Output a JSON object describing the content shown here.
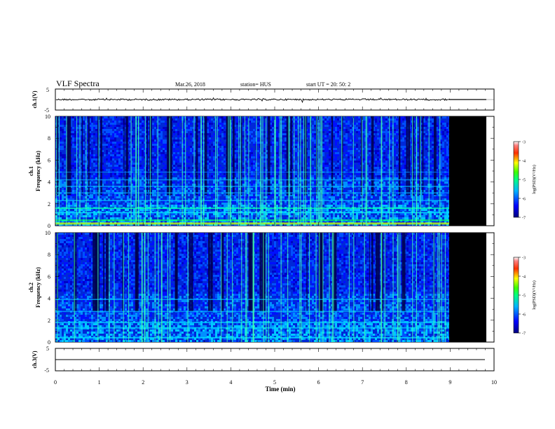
{
  "header": {
    "title": "VLF Spectra",
    "date": "Mar.26, 2018",
    "station": "station= HUS",
    "start_time": "start  UT  =   20: 50: 2"
  },
  "chart_data": [
    {
      "type": "line",
      "name": "ch1-waveform",
      "ylabel": "ch.1(V)",
      "yticks": [
        "5",
        "0",
        "-5"
      ],
      "ylim": [
        -5,
        5
      ],
      "xlim": [
        0,
        10
      ],
      "note": "noisy signal near 0 V until ~9 min, flat after"
    },
    {
      "type": "heatmap",
      "name": "ch1-spectrogram",
      "ylabel": "ch.1\nFrequency (kHz)",
      "ylabel_lines": [
        "ch.1",
        "Frequency  (kHz)"
      ],
      "yticks": [
        "10",
        "8",
        "6",
        "4",
        "2",
        "0"
      ],
      "ylim": [
        0,
        10
      ],
      "xlim": [
        0,
        10
      ],
      "data_end_min": 9.0,
      "colorbar": {
        "label": "log(PSD)(V²/Hz)",
        "ticks": [
          "-3",
          "-4",
          "-5",
          "-6",
          "-7"
        ],
        "range": [
          -7,
          -3
        ]
      }
    },
    {
      "type": "heatmap",
      "name": "ch2-spectrogram",
      "ylabel_lines": [
        "ch.2",
        "Frequency  (kHz)"
      ],
      "yticks": [
        "10",
        "8",
        "6",
        "4",
        "2",
        "0"
      ],
      "ylim": [
        0,
        10
      ],
      "xlim": [
        0,
        10
      ],
      "data_end_min": 9.0,
      "colorbar": {
        "label": "log(PSD)(V²/Hz)",
        "ticks": [
          "-3",
          "-4",
          "-5",
          "-6",
          "-7"
        ],
        "range": [
          -7,
          -3
        ]
      }
    },
    {
      "type": "line",
      "name": "ch3-waveform",
      "ylabel": "ch.3(V)",
      "yticks": [
        "5",
        "0",
        "-5"
      ],
      "ylim": [
        -5,
        5
      ],
      "xlim": [
        0,
        10
      ],
      "note": "flat line at about 0 V"
    }
  ],
  "xaxis": {
    "label": "Time  (min)",
    "ticks": [
      "0",
      "1",
      "2",
      "3",
      "4",
      "5",
      "6",
      "7",
      "8",
      "9",
      "10"
    ]
  },
  "colors": {
    "deep": "#000066",
    "blue": "#0000ff",
    "cyan": "#00c8ff",
    "green": "#00ff40",
    "yellow": "#ffff00",
    "red": "#ff0000",
    "mask": "#000000"
  }
}
